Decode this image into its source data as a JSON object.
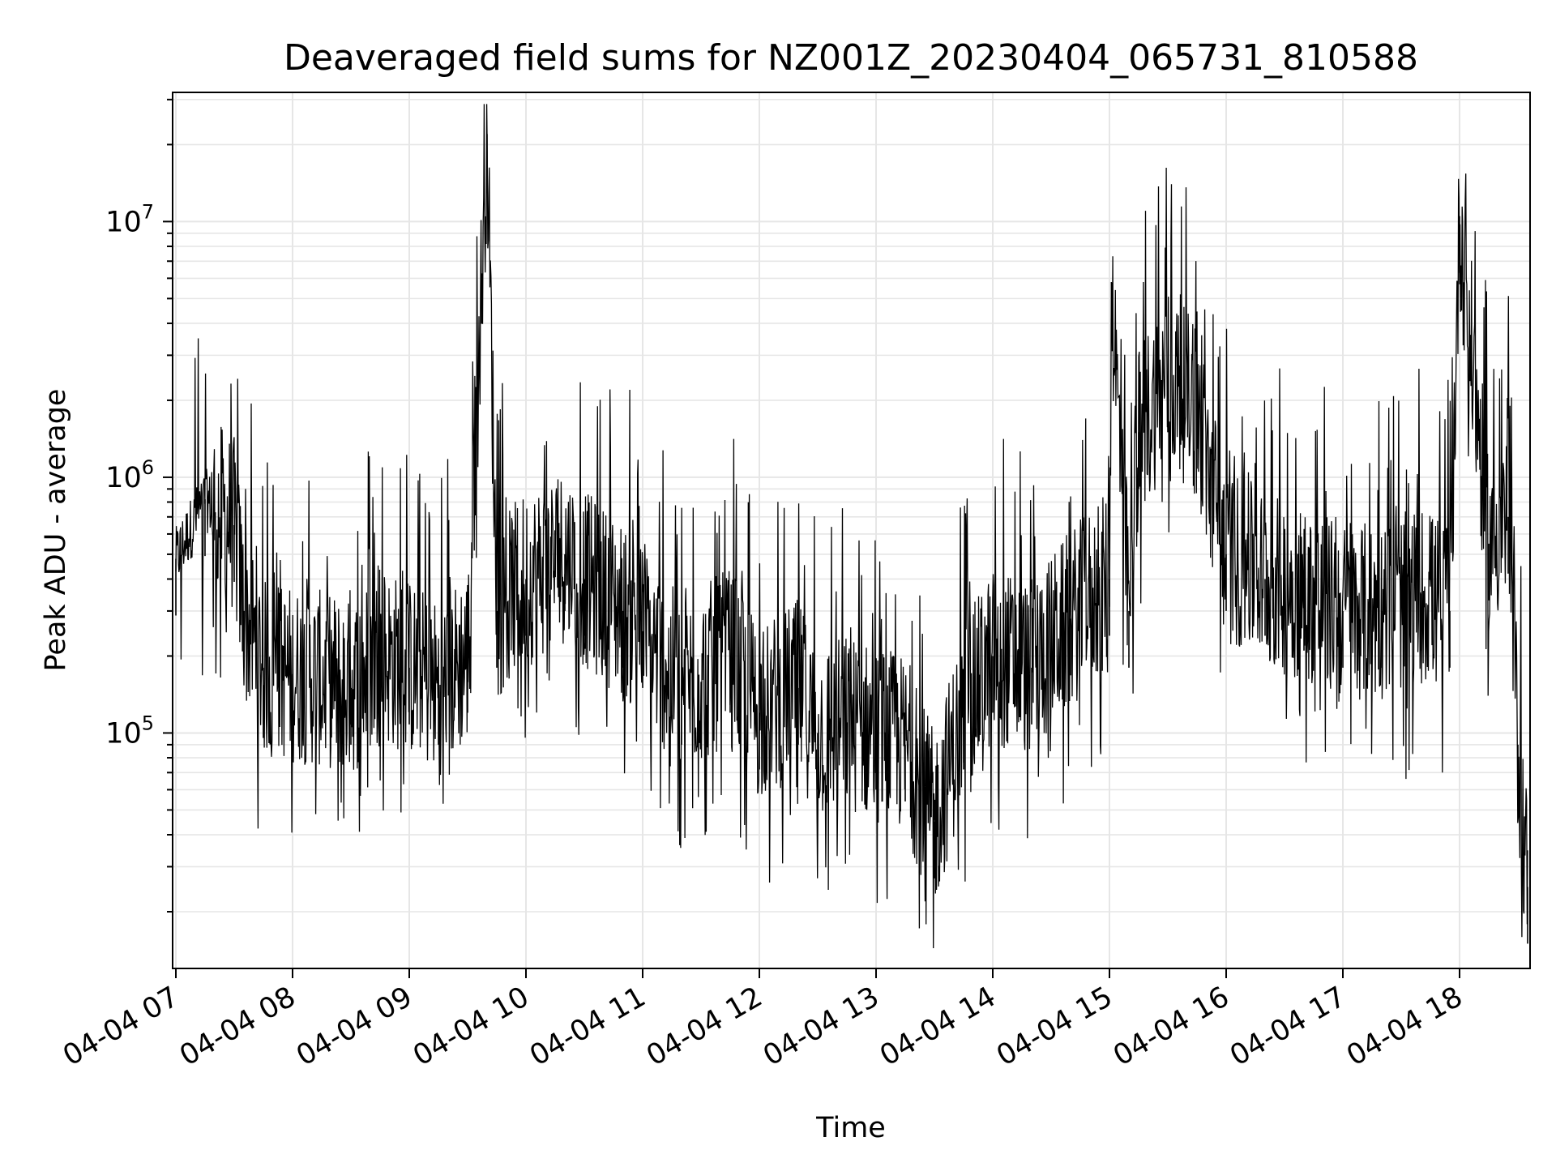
{
  "chart_data": {
    "type": "line",
    "title": "Deaveraged field sums for NZ001Z_20230404_065731_810588",
    "xlabel": "Time",
    "ylabel": "Peak ADU - average",
    "yscale": "log",
    "ylim": [
      12000,
      32000000
    ],
    "xlim_hours": [
      "04-04 06:58",
      "04-04 18:37"
    ],
    "x_ticks": [
      "04-04 07",
      "04-04 08",
      "04-04 09",
      "04-04 10",
      "04-04 11",
      "04-04 12",
      "04-04 13",
      "04-04 14",
      "04-04 15",
      "04-04 16",
      "04-04 17",
      "04-04 18"
    ],
    "y_ticks": [
      {
        "base": "10",
        "exp": "5",
        "value": 100000
      },
      {
        "base": "10",
        "exp": "6",
        "value": 1000000
      },
      {
        "base": "10",
        "exp": "7",
        "value": 10000000
      }
    ],
    "grid": true,
    "line_color": "#000000",
    "grid_color": "#e6e6e6",
    "series": [
      {
        "x": [
          "04-04 07:00",
          "04-04 07:15",
          "04-04 07:30",
          "04-04 07:35",
          "04-04 07:45",
          "04-04 08:00",
          "04-04 08:20",
          "04-04 08:30",
          "04-04 08:45",
          "04-04 09:00",
          "04-04 09:15",
          "04-04 09:30",
          "04-04 09:40",
          "04-04 09:45",
          "04-04 10:00",
          "04-04 10:20",
          "04-04 10:30",
          "04-04 10:50",
          "04-04 11:00",
          "04-04 11:20",
          "04-04 11:45",
          "04-04 12:00",
          "04-04 12:20",
          "04-04 12:30",
          "04-04 12:45",
          "04-04 13:00",
          "04-04 13:15",
          "04-04 13:30",
          "04-04 13:45",
          "04-04 14:00",
          "04-04 14:20",
          "04-04 14:40",
          "04-04 15:00",
          "04-04 15:01",
          "04-04 15:10",
          "04-04 15:15",
          "04-04 15:30",
          "04-04 15:45",
          "04-04 16:00",
          "04-04 16:20",
          "04-04 16:40",
          "04-04 17:00",
          "04-04 17:20",
          "04-04 17:40",
          "04-04 17:55",
          "04-04 18:00",
          "04-04 18:15",
          "04-04 18:25",
          "04-04 18:30",
          "04-04 18:35"
        ],
        "y": [
          480000,
          820000,
          650000,
          300000,
          180000,
          170000,
          160000,
          150000,
          200000,
          180000,
          150000,
          200000,
          22000000,
          300000,
          400000,
          500000,
          400000,
          300000,
          250000,
          150000,
          200000,
          120000,
          150000,
          100000,
          110000,
          100000,
          90000,
          45000,
          120000,
          200000,
          180000,
          280000,
          400000,
          5800000,
          300000,
          1500000,
          2500000,
          1800000,
          500000,
          400000,
          350000,
          300000,
          300000,
          350000,
          300000,
          10500000,
          550000,
          700000,
          90000,
          25000
        ]
      }
    ]
  }
}
